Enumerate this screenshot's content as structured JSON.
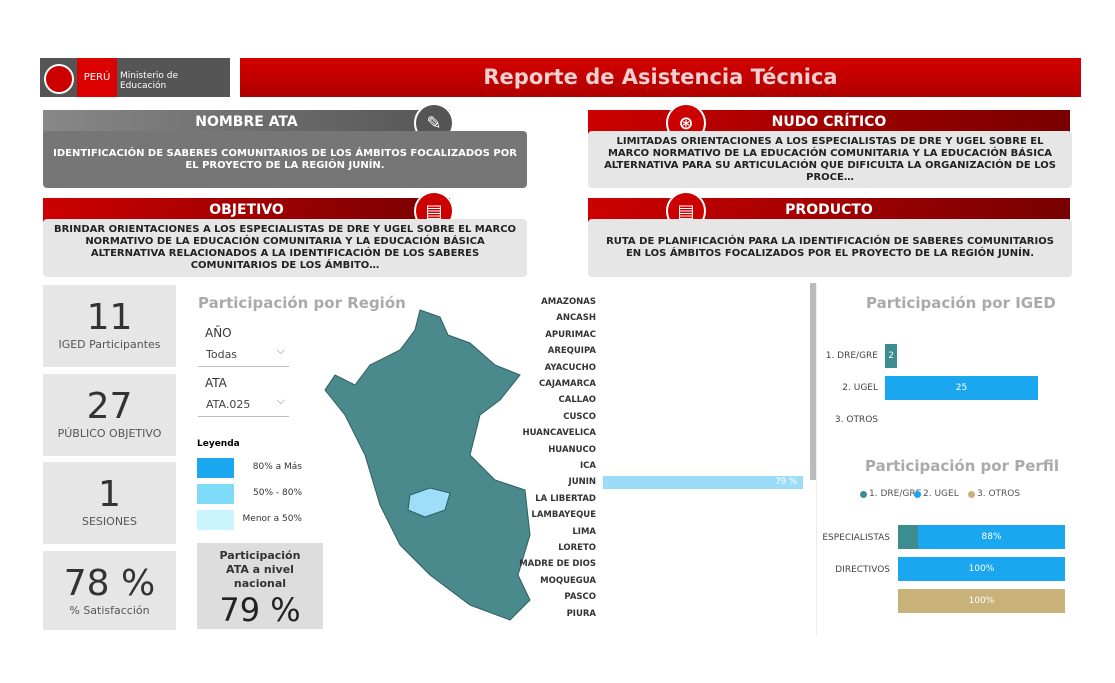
{
  "header": {
    "brand": "PERÚ",
    "ministry": "Ministerio de Educación",
    "title": "Reporte de Asistencia Técnica"
  },
  "cards": {
    "nombre": {
      "title": "NOMBRE ATA",
      "text": "IDENTIFICACIÓN DE SABERES COMUNITARIOS DE LOS ÁMBITOS FOCALIZADOS POR EL PROYECTO DE LA REGIÓN JUNÍN."
    },
    "nudo": {
      "title": "NUDO CRÍTICO",
      "text": "LIMITADAS ORIENTACIONES A LOS ESPECIALISTAS DE DRE Y UGEL SOBRE EL MARCO NORMATIVO DE LA EDUCACIÓN COMUNITARIA Y LA EDUCACIÓN BÁSICA ALTERNATIVA PARA SU ARTICULACIÓN QUE DIFICULTA LA ORGANIZACIÓN DE LOS PROCE…"
    },
    "objetivo": {
      "title": "OBJETIVO",
      "text": "BRINDAR ORIENTACIONES A LOS ESPECIALISTAS DE DRE Y UGEL SOBRE EL MARCO NORMATIVO DE LA EDUCACIÓN COMUNITARIA Y LA EDUCACIÓN BÁSICA ALTERNATIVA RELACIONADOS A LA IDENTIFICACIÓN DE LOS SABERES COMUNITARIOS DE LOS ÁMBITO…"
    },
    "producto": {
      "title": "PRODUCTO",
      "text": "RUTA DE PLANIFICACIÓN PARA LA IDENTIFICACIÓN DE SABERES COMUNITARIOS EN LOS ÁMBITOS FOCALIZADOS POR EL PROYECTO DE LA REGIÓN JUNÍN."
    }
  },
  "kpis": [
    {
      "value": "11",
      "label": "IGED Participantes"
    },
    {
      "value": "27",
      "label": "PÚBLICO OBJETIVO"
    },
    {
      "value": "1",
      "label": "SESIONES"
    },
    {
      "value": "78 %",
      "label": "% Satisfacción"
    }
  ],
  "region": {
    "title": "Participación por Región",
    "filters": [
      {
        "label": "AÑO",
        "selected": "Todas"
      },
      {
        "label": "ATA",
        "selected": "ATA.025"
      }
    ],
    "legend": {
      "title": "Leyenda",
      "items": [
        {
          "label": "80% a Más",
          "color": "#1aa7f0"
        },
        {
          "label": "50% - 80%",
          "color": "#7fdcf8"
        },
        {
          "label": "Menor a 50%",
          "color": "#c9f6fc"
        }
      ]
    },
    "national": {
      "label": "Participación ATA a nivel nacional",
      "value": "79 %"
    },
    "chart": {
      "type": "bar",
      "orientation": "horizontal",
      "color": "#9bdcf8",
      "categories": [
        "AMAZONAS",
        "ANCASH",
        "APURIMAC",
        "AREQUIPA",
        "AYACUCHO",
        "CAJAMARCA",
        "CALLAO",
        "CUSCO",
        "HUANCAVELICA",
        "HUANUCO",
        "ICA",
        "JUNIN",
        "LA LIBERTAD",
        "LAMBAYEQUE",
        "LIMA",
        "LORETO",
        "MADRE DE DIOS",
        "MOQUEGUA",
        "PASCO",
        "PIURA"
      ],
      "values": [
        null,
        null,
        null,
        null,
        null,
        null,
        null,
        null,
        null,
        null,
        null,
        79,
        null,
        null,
        null,
        null,
        null,
        null,
        null,
        null
      ],
      "value_labels": [
        null,
        null,
        null,
        null,
        null,
        null,
        null,
        null,
        null,
        null,
        null,
        "79 %",
        null,
        null,
        null,
        null,
        null,
        null,
        null,
        null
      ]
    }
  },
  "iged": {
    "type": "bar",
    "orientation": "horizontal",
    "title": "Participación por IGED",
    "categories": [
      "1. DRE/GRE",
      "2. UGEL",
      "3. OTROS"
    ],
    "values": [
      2,
      25,
      null
    ],
    "colors": [
      "#3d8c8f",
      "#1aa7f0",
      "#c8b27a"
    ]
  },
  "perfil": {
    "type": "stacked_bar",
    "orientation": "horizontal",
    "title": "Participación por Perfil",
    "categories": [
      "ESPECIALISTAS",
      "DIRECTIVOS",
      null
    ],
    "series": [
      {
        "name": "1. DRE/GRE",
        "color": "#3d8c8f",
        "values": [
          12,
          null,
          null
        ]
      },
      {
        "name": "2. UGEL",
        "color": "#1aa7f0",
        "values": [
          88,
          100,
          null
        ],
        "value_labels": [
          "88%",
          "100%",
          null
        ]
      },
      {
        "name": "3. OTROS",
        "color": "#c8b27a",
        "values": [
          null,
          null,
          100
        ],
        "value_labels": [
          null,
          null,
          "100%"
        ]
      }
    ]
  }
}
